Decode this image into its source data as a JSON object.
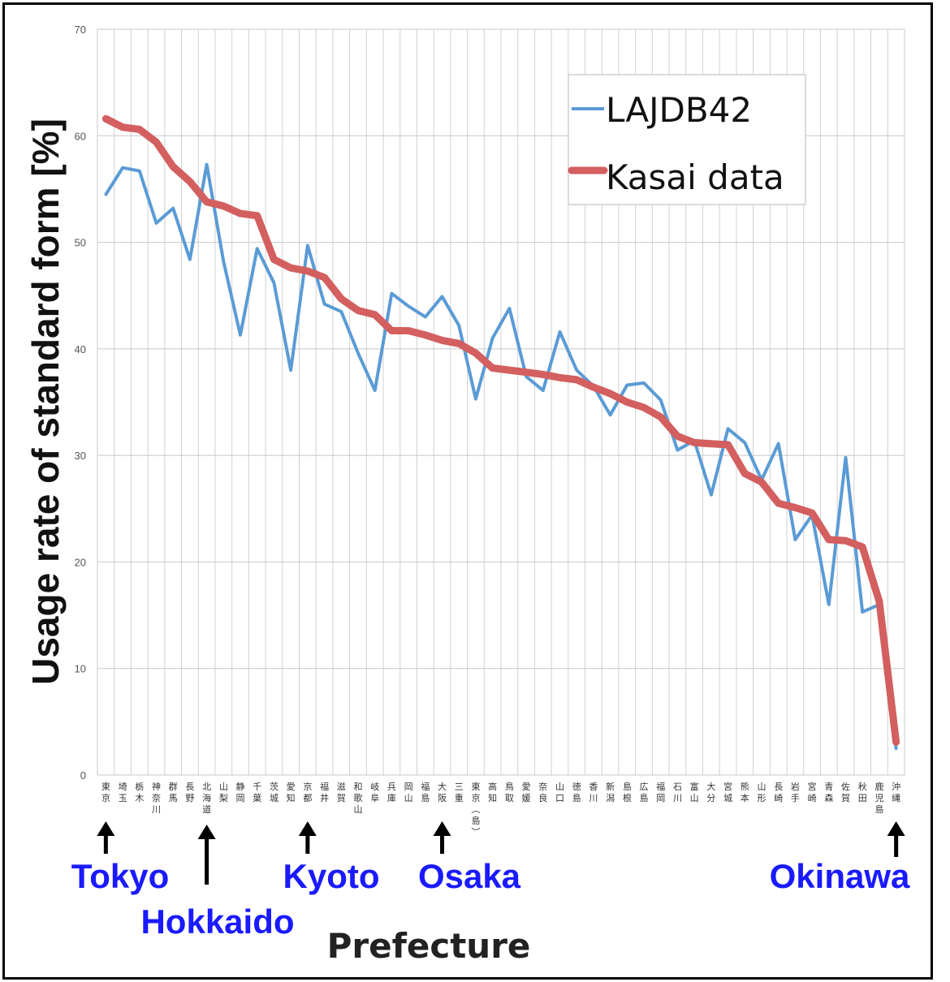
{
  "chart_data": {
    "type": "line",
    "title": "",
    "xlabel": "Prefecture",
    "ylabel": "Usage rate of standard form [%]",
    "ylim": [
      0,
      70
    ],
    "yticks": [
      "0",
      "10",
      "20",
      "30",
      "40",
      "50",
      "60",
      "70"
    ],
    "grid": true,
    "legend_position": "top-right",
    "categories": [
      "東京",
      "埼玉",
      "栃木",
      "神奈川",
      "群馬",
      "長野",
      "北海道",
      "山梨",
      "静岡",
      "千葉",
      "茨城",
      "愛知",
      "京都",
      "福井",
      "滋賀",
      "和歌山",
      "岐阜",
      "兵庫",
      "岡山",
      "福島",
      "大阪",
      "三重",
      "東京(島)",
      "高知",
      "鳥取",
      "愛媛",
      "奈良",
      "山口",
      "徳島",
      "香川",
      "新潟",
      "島根",
      "広島",
      "福岡",
      "石川",
      "富山",
      "大分",
      "宮城",
      "熊本",
      "山形",
      "長崎",
      "岩手",
      "宮崎",
      "青森",
      "佐賀",
      "秋田",
      "鹿児島",
      "沖縄"
    ],
    "series": [
      {
        "name": "LAJDB42",
        "color": "#5b9bd5",
        "values": [
          54.5,
          57.0,
          56.7,
          51.8,
          53.2,
          48.4,
          57.3,
          48.2,
          41.3,
          49.4,
          46.2,
          38.0,
          49.7,
          44.2,
          43.5,
          39.6,
          36.1,
          45.2,
          44.0,
          43.0,
          44.9,
          42.2,
          35.3,
          41.0,
          43.8,
          37.4,
          36.1,
          41.6,
          38.0,
          36.5,
          33.8,
          36.6,
          36.8,
          35.2,
          30.5,
          31.4,
          26.3,
          32.5,
          31.2,
          27.7,
          31.1,
          22.1,
          24.4,
          16.0,
          29.8,
          15.3,
          16.0,
          2.5
        ]
      },
      {
        "name": "Kasai data",
        "color": "#d35f5f",
        "values": [
          61.6,
          60.8,
          60.6,
          59.4,
          57.1,
          55.7,
          53.8,
          53.4,
          52.7,
          52.5,
          48.4,
          47.6,
          47.3,
          46.7,
          44.7,
          43.6,
          43.2,
          41.7,
          41.7,
          41.3,
          40.8,
          40.5,
          39.6,
          38.2,
          38.0,
          37.8,
          37.6,
          37.3,
          37.1,
          36.4,
          35.8,
          35.0,
          34.5,
          33.6,
          31.8,
          31.2,
          31.1,
          31.0,
          28.3,
          27.5,
          25.5,
          25.1,
          24.6,
          22.1,
          22.0,
          21.4,
          16.3,
          3.1
        ]
      }
    ],
    "annotations": [
      {
        "text": "Tokyo",
        "category": "東京"
      },
      {
        "text": "Hokkaido",
        "category": "北海道"
      },
      {
        "text": "Kyoto",
        "category": "京都"
      },
      {
        "text": "Osaka",
        "category": "大阪"
      },
      {
        "text": "Okinawa",
        "category": "沖縄"
      }
    ]
  }
}
